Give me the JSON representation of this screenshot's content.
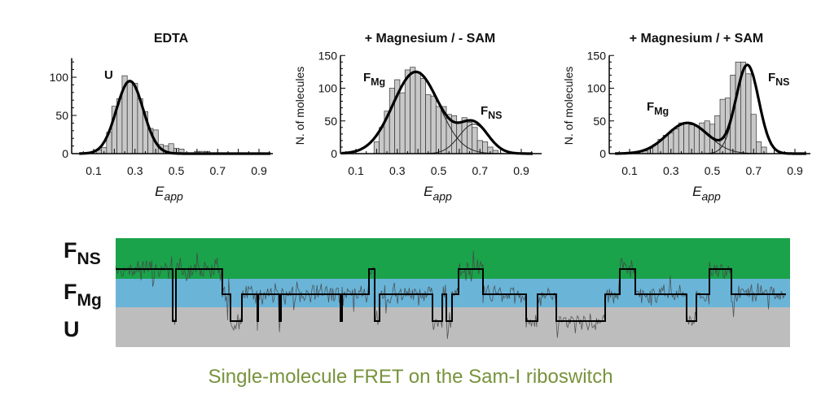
{
  "chart_data": [
    {
      "type": "bar",
      "title": "EDTA",
      "xlabel": "E",
      "xlabel_sub": "app",
      "ylabel": "",
      "xlim": [
        0,
        0.97
      ],
      "ylim": [
        0,
        125
      ],
      "xticks": [
        0.1,
        0.3,
        0.5,
        0.7,
        0.9
      ],
      "yticks": [
        0,
        50,
        100
      ],
      "bin_width": 0.025,
      "bins": [
        [
          0.125,
          5
        ],
        [
          0.15,
          8
        ],
        [
          0.175,
          28
        ],
        [
          0.2,
          62
        ],
        [
          0.225,
          72
        ],
        [
          0.25,
          102
        ],
        [
          0.275,
          95
        ],
        [
          0.3,
          92
        ],
        [
          0.325,
          72
        ],
        [
          0.35,
          55
        ],
        [
          0.375,
          33
        ],
        [
          0.4,
          31
        ],
        [
          0.425,
          12
        ],
        [
          0.45,
          10
        ],
        [
          0.475,
          13
        ],
        [
          0.5,
          7
        ],
        [
          0.525,
          6
        ],
        [
          0.6,
          3
        ],
        [
          0.625,
          3
        ],
        [
          0.65,
          3
        ]
      ],
      "fit_components": [
        {
          "label": "U",
          "center": 0.275,
          "sigma": 0.065,
          "amplitude": 95
        }
      ],
      "peak_labels": [
        {
          "main": "U",
          "sub": ""
        }
      ]
    },
    {
      "type": "bar",
      "title": "+ Magnesium / - SAM",
      "xlabel": "E",
      "xlabel_sub": "app",
      "ylabel": "N. of molecules",
      "xlim": [
        0,
        0.97
      ],
      "ylim": [
        0,
        150
      ],
      "xticks": [
        0.1,
        0.3,
        0.5,
        0.7,
        0.9
      ],
      "yticks": [
        0,
        50,
        100,
        150
      ],
      "bin_width": 0.025,
      "bins": [
        [
          0.2,
          18
        ],
        [
          0.225,
          40
        ],
        [
          0.25,
          65
        ],
        [
          0.275,
          100
        ],
        [
          0.3,
          113
        ],
        [
          0.325,
          93
        ],
        [
          0.35,
          128
        ],
        [
          0.375,
          132
        ],
        [
          0.4,
          125
        ],
        [
          0.425,
          115
        ],
        [
          0.45,
          90
        ],
        [
          0.475,
          88
        ],
        [
          0.5,
          72
        ],
        [
          0.525,
          72
        ],
        [
          0.55,
          60
        ],
        [
          0.575,
          58
        ],
        [
          0.6,
          48
        ],
        [
          0.625,
          55
        ],
        [
          0.65,
          48
        ],
        [
          0.675,
          40
        ],
        [
          0.7,
          20
        ],
        [
          0.725,
          18
        ],
        [
          0.75,
          10
        ],
        [
          0.775,
          5
        ]
      ],
      "fit_components": [
        {
          "label": "FMg",
          "center": 0.39,
          "sigma": 0.11,
          "amplitude": 125
        },
        {
          "label": "FNS",
          "center": 0.67,
          "sigma": 0.07,
          "amplitude": 45
        }
      ],
      "peak_labels": [
        {
          "main": "F",
          "sub": "Mg"
        },
        {
          "main": "F",
          "sub": "NS"
        }
      ]
    },
    {
      "type": "bar",
      "title": "+ Magnesium / + SAM",
      "xlabel": "E",
      "xlabel_sub": "app",
      "ylabel": "N. of molecules",
      "xlim": [
        0,
        0.97
      ],
      "ylim": [
        0,
        150
      ],
      "xticks": [
        0.1,
        0.3,
        0.5,
        0.7,
        0.9
      ],
      "yticks": [
        0,
        50,
        100,
        150
      ],
      "bin_width": 0.025,
      "bins": [
        [
          0.175,
          4
        ],
        [
          0.2,
          8
        ],
        [
          0.225,
          14
        ],
        [
          0.25,
          22
        ],
        [
          0.275,
          28
        ],
        [
          0.3,
          32
        ],
        [
          0.325,
          38
        ],
        [
          0.35,
          47
        ],
        [
          0.375,
          48
        ],
        [
          0.4,
          44
        ],
        [
          0.425,
          42
        ],
        [
          0.45,
          47
        ],
        [
          0.475,
          50
        ],
        [
          0.5,
          45
        ],
        [
          0.525,
          58
        ],
        [
          0.55,
          83
        ],
        [
          0.575,
          85
        ],
        [
          0.6,
          120
        ],
        [
          0.625,
          140
        ],
        [
          0.65,
          140
        ],
        [
          0.675,
          122
        ],
        [
          0.7,
          60
        ],
        [
          0.725,
          18
        ],
        [
          0.75,
          10
        ]
      ],
      "fit_components": [
        {
          "label": "FMg",
          "center": 0.38,
          "sigma": 0.1,
          "amplitude": 47
        },
        {
          "label": "FNS",
          "center": 0.67,
          "sigma": 0.055,
          "amplitude": 135
        }
      ],
      "peak_labels": [
        {
          "main": "F",
          "sub": "Mg"
        },
        {
          "main": "F",
          "sub": "NS"
        }
      ]
    }
  ],
  "trace": {
    "states": [
      {
        "main": "F",
        "sub": "NS",
        "color": "#1aa34a"
      },
      {
        "main": "F",
        "sub": "Mg",
        "color": "#6ab4d8"
      },
      {
        "main": "U",
        "sub": "",
        "color": "#bdbdbd"
      }
    ],
    "idealized_path": [
      [
        "NS",
        70
      ],
      [
        "U",
        4
      ],
      [
        "NS",
        57
      ],
      [
        "Mg",
        10
      ],
      [
        "U",
        14
      ],
      [
        "Mg",
        19
      ],
      [
        "U",
        1
      ],
      [
        "Mg",
        26
      ],
      [
        "U",
        2
      ],
      [
        "Mg",
        73
      ],
      [
        "U",
        2
      ],
      [
        "Mg",
        33
      ],
      [
        "NS",
        7
      ],
      [
        "U",
        6
      ],
      [
        "Mg",
        65
      ],
      [
        "U",
        12
      ],
      [
        "Mg",
        5
      ],
      [
        "U",
        7
      ],
      [
        "Mg",
        8
      ],
      [
        "NS",
        30
      ],
      [
        "Mg",
        53
      ],
      [
        "U",
        14
      ],
      [
        "Mg",
        23
      ],
      [
        "U",
        60
      ],
      [
        "Mg",
        18
      ],
      [
        "NS",
        19
      ],
      [
        "Mg",
        63
      ],
      [
        "U",
        12
      ],
      [
        "Mg",
        16
      ],
      [
        "NS",
        27
      ],
      [
        "Mg",
        67
      ]
    ]
  },
  "caption": "Single-molecule FRET on the Sam-I riboswitch",
  "colors": {
    "caption": "#77933c",
    "bar_fill": "#c8c8c8",
    "fit": "#000000"
  }
}
